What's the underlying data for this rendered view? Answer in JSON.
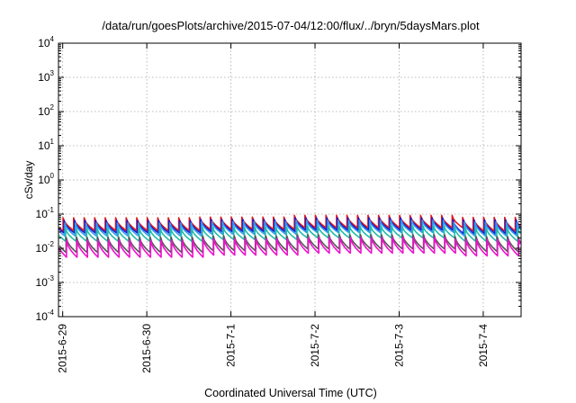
{
  "chart_data": {
    "type": "line",
    "title": "/data/run/goesPlots/archive/2015-07-04/12:00/flux/../bryn/5daysMars.plot",
    "xlabel": "Coordinated Universal Time (UTC)",
    "ylabel": "cSv/day",
    "yscale": "log",
    "ylim": [
      0.0001,
      10000
    ],
    "y_ticks": [
      {
        "value": 0.0001,
        "base": "10",
        "exp": "-4"
      },
      {
        "value": 0.001,
        "base": "10",
        "exp": "-3"
      },
      {
        "value": 0.01,
        "base": "10",
        "exp": "-2"
      },
      {
        "value": 0.1,
        "base": "10",
        "exp": "-1"
      },
      {
        "value": 1,
        "base": "10",
        "exp": "0"
      },
      {
        "value": 10,
        "base": "10",
        "exp": "1"
      },
      {
        "value": 100,
        "base": "10",
        "exp": "2"
      },
      {
        "value": 1000,
        "base": "10",
        "exp": "3"
      },
      {
        "value": 10000,
        "base": "10",
        "exp": "4"
      }
    ],
    "x_ticks": [
      "2015-6-29",
      "2015-6-30",
      "2015-7-1",
      "2015-7-2",
      "2015-7-3",
      "2015-7-4"
    ],
    "x_tick_days": [
      0,
      1,
      2,
      3,
      4,
      5
    ],
    "xlim_days": [
      -0.05,
      5.45
    ],
    "grid": true,
    "sawtooth_period_days": 0.125,
    "series": [
      {
        "color": "#e41a1c",
        "lead_days": 0.005,
        "segments": [
          {
            "from": -0.05,
            "to": 1.65,
            "peak": 0.078,
            "trough": 0.033
          },
          {
            "from": 1.65,
            "to": 2.75,
            "peak": 0.082,
            "trough": 0.036
          },
          {
            "from": 2.75,
            "to": 4.7,
            "peak": 0.092,
            "trough": 0.04
          },
          {
            "from": 4.7,
            "to": 5.45,
            "peak": 0.08,
            "trough": 0.032
          }
        ]
      },
      {
        "color": "#1a1acc",
        "lead_days": 0.015,
        "segments": [
          {
            "from": -0.05,
            "to": 1.65,
            "peak": 0.065,
            "trough": 0.028
          },
          {
            "from": 1.65,
            "to": 2.75,
            "peak": 0.07,
            "trough": 0.031
          },
          {
            "from": 2.75,
            "to": 4.7,
            "peak": 0.078,
            "trough": 0.034
          },
          {
            "from": 4.7,
            "to": 5.45,
            "peak": 0.068,
            "trough": 0.027
          }
        ]
      },
      {
        "color": "#3399ee",
        "lead_days": 0.025,
        "segments": [
          {
            "from": -0.05,
            "to": 1.65,
            "peak": 0.055,
            "trough": 0.023
          },
          {
            "from": 1.65,
            "to": 2.75,
            "peak": 0.06,
            "trough": 0.026
          },
          {
            "from": 2.75,
            "to": 4.7,
            "peak": 0.066,
            "trough": 0.029
          },
          {
            "from": 4.7,
            "to": 5.45,
            "peak": 0.058,
            "trough": 0.023
          }
        ]
      },
      {
        "color": "#22bbaa",
        "lead_days": 0.035,
        "segments": [
          {
            "from": -0.05,
            "to": 1.65,
            "peak": 0.038,
            "trough": 0.016
          },
          {
            "from": 1.65,
            "to": 2.75,
            "peak": 0.041,
            "trough": 0.018
          },
          {
            "from": 2.75,
            "to": 4.7,
            "peak": 0.045,
            "trough": 0.02
          },
          {
            "from": 4.7,
            "to": 5.45,
            "peak": 0.04,
            "trough": 0.016
          }
        ]
      },
      {
        "color": "#555555",
        "lead_days": 0.04,
        "segments": [
          {
            "from": -0.05,
            "to": 1.65,
            "peak": 0.021,
            "trough": 0.0075
          },
          {
            "from": 1.65,
            "to": 2.75,
            "peak": 0.023,
            "trough": 0.0085
          },
          {
            "from": 2.75,
            "to": 4.7,
            "peak": 0.025,
            "trough": 0.0095
          },
          {
            "from": 4.7,
            "to": 5.45,
            "peak": 0.022,
            "trough": 0.008
          }
        ]
      },
      {
        "color": "#ee11cc",
        "lead_days": 0.045,
        "segments": [
          {
            "from": -0.05,
            "to": 1.65,
            "peak": 0.017,
            "trough": 0.0055
          },
          {
            "from": 1.65,
            "to": 2.75,
            "peak": 0.019,
            "trough": 0.0063
          },
          {
            "from": 2.75,
            "to": 4.7,
            "peak": 0.021,
            "trough": 0.0072
          },
          {
            "from": 4.7,
            "to": 5.45,
            "peak": 0.018,
            "trough": 0.006
          }
        ]
      }
    ]
  }
}
